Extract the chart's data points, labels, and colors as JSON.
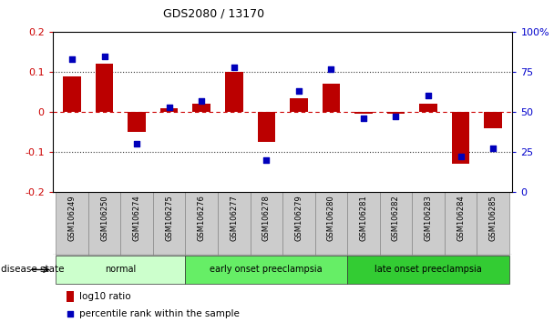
{
  "title": "GDS2080 / 13170",
  "samples": [
    "GSM106249",
    "GSM106250",
    "GSM106274",
    "GSM106275",
    "GSM106276",
    "GSM106277",
    "GSM106278",
    "GSM106279",
    "GSM106280",
    "GSM106281",
    "GSM106282",
    "GSM106283",
    "GSM106284",
    "GSM106285"
  ],
  "log10_ratio": [
    0.09,
    0.12,
    -0.05,
    0.01,
    0.02,
    0.1,
    -0.075,
    0.035,
    0.07,
    -0.005,
    -0.005,
    0.02,
    -0.13,
    -0.04
  ],
  "percentile_rank": [
    83,
    85,
    30,
    53,
    57,
    78,
    20,
    63,
    77,
    46,
    47,
    60,
    22,
    27
  ],
  "bar_color": "#bb0000",
  "square_color": "#0000bb",
  "zero_line_color": "#cc0000",
  "dotted_line_color": "#333333",
  "ytick_left_color": "#cc0000",
  "ytick_right_color": "#0000cc",
  "groups": [
    {
      "label": "normal",
      "start": 0,
      "end": 3,
      "color": "#ccffcc"
    },
    {
      "label": "early onset preeclampsia",
      "start": 4,
      "end": 8,
      "color": "#66ee66"
    },
    {
      "label": "late onset preeclampsia",
      "start": 9,
      "end": 13,
      "color": "#33cc33"
    }
  ],
  "ylim_left": [
    -0.2,
    0.2
  ],
  "ylim_right": [
    0,
    100
  ],
  "yticks_left": [
    -0.2,
    -0.1,
    0.0,
    0.1,
    0.2
  ],
  "ytick_labels_left": [
    "-0.2",
    "-0.1",
    "0",
    "0.1",
    "0.2"
  ],
  "yticks_right": [
    0,
    25,
    50,
    75,
    100
  ],
  "ytick_labels_right": [
    "0",
    "25",
    "50",
    "75",
    "100%"
  ],
  "bar_width": 0.55,
  "figsize": [
    6.08,
    3.54
  ],
  "dpi": 100,
  "box_color": "#cccccc",
  "box_edge_color": "#888888",
  "disease_state_label": "disease state",
  "legend_items": [
    {
      "color": "#bb0000",
      "marker": "s",
      "label": "log10 ratio",
      "is_bar": true
    },
    {
      "color": "#0000bb",
      "marker": "s",
      "label": "percentile rank within the sample",
      "is_bar": false
    }
  ]
}
